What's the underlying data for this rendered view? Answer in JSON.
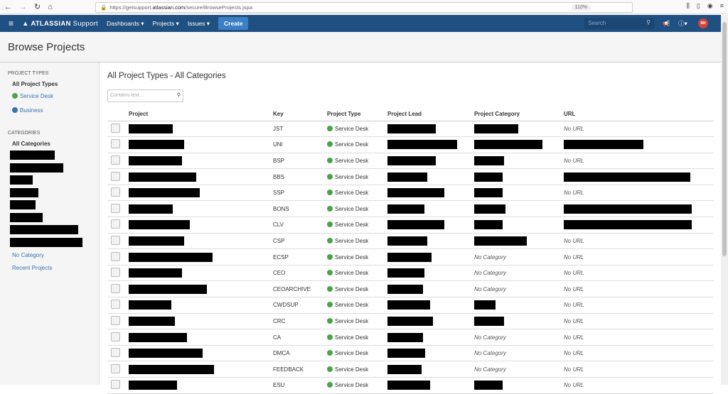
{
  "browser": {
    "url_prefix": "https://getsupport.",
    "url_domain": "atlassian.com",
    "url_path": "/secure/BrowseProjects.jspa",
    "zoom": "110%"
  },
  "nav": {
    "logo": "ATLASSIAN",
    "logo_suffix": "Support",
    "dashboards": "Dashboards ▾",
    "projects": "Projects ▾",
    "issues": "Issues ▾",
    "create": "Create",
    "search_placeholder": "Search",
    "avatar": "BN",
    "accent": "#205081"
  },
  "page": {
    "title": "Browse Projects"
  },
  "sidebar": {
    "project_types_heading": "PROJECT TYPES",
    "types": [
      "All Project Types",
      "Service Desk",
      "Business"
    ],
    "categories_heading": "CATEGORIES",
    "all_categories": "All Categories",
    "no_category": "No Category",
    "recent_projects": "Recent Projects"
  },
  "main": {
    "heading": "All Project Types - All Categories",
    "filter_placeholder": "Contains text...",
    "columns": [
      "Project",
      "Key",
      "Project Type",
      "Project Lead",
      "Project Category",
      "URL"
    ],
    "rows": [
      {
        "key": "JST",
        "type": "Service Desk",
        "category": null,
        "url": "No URL"
      },
      {
        "key": "UNI",
        "type": "Service Desk",
        "category": null,
        "url": null
      },
      {
        "key": "BSP",
        "type": "Service Desk",
        "category": null,
        "url": "No URL"
      },
      {
        "key": "BBS",
        "type": "Service Desk",
        "category": null,
        "url": null
      },
      {
        "key": "SSP",
        "type": "Service Desk",
        "category": null,
        "url": "No URL"
      },
      {
        "key": "BONS",
        "type": "Service Desk",
        "category": null,
        "url": null
      },
      {
        "key": "CLV",
        "type": "Service Desk",
        "category": null,
        "url": null
      },
      {
        "key": "CSP",
        "type": "Service Desk",
        "category": null,
        "url": "No URL"
      },
      {
        "key": "ECSP",
        "type": "Service Desk",
        "category": "No Category",
        "url": "No URL"
      },
      {
        "key": "CEO",
        "type": "Service Desk",
        "category": "No Category",
        "url": "No URL"
      },
      {
        "key": "CEOARCHIVE",
        "type": "Service Desk",
        "category": "No Category",
        "url": "No URL"
      },
      {
        "key": "CWDSUP",
        "type": "Service Desk",
        "category": null,
        "url": "No URL"
      },
      {
        "key": "CRC",
        "type": "Service Desk",
        "category": null,
        "url": "No URL"
      },
      {
        "key": "CA",
        "type": "Service Desk",
        "category": "No Category",
        "url": "No URL"
      },
      {
        "key": "DMCA",
        "type": "Service Desk",
        "category": "No Category",
        "url": "No URL"
      },
      {
        "key": "FEEDBACK",
        "type": "Service Desk",
        "category": "No Category",
        "url": "No URL"
      },
      {
        "key": "ESU",
        "type": "Service Desk",
        "category": null,
        "url": "No URL"
      }
    ]
  }
}
